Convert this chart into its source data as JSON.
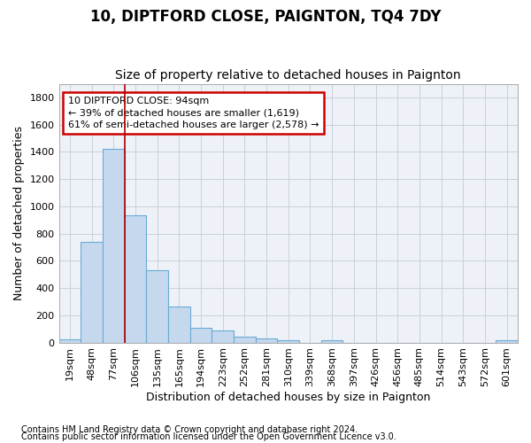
{
  "title": "10, DIPTFORD CLOSE, PAIGNTON, TQ4 7DY",
  "subtitle": "Size of property relative to detached houses in Paignton",
  "xlabel": "Distribution of detached houses by size in Paignton",
  "ylabel": "Number of detached properties",
  "categories": [
    "19sqm",
    "48sqm",
    "77sqm",
    "106sqm",
    "135sqm",
    "165sqm",
    "194sqm",
    "223sqm",
    "252sqm",
    "281sqm",
    "310sqm",
    "339sqm",
    "368sqm",
    "397sqm",
    "426sqm",
    "456sqm",
    "485sqm",
    "514sqm",
    "543sqm",
    "572sqm",
    "601sqm"
  ],
  "values": [
    25,
    740,
    1420,
    935,
    530,
    265,
    105,
    90,
    40,
    27,
    15,
    0,
    15,
    0,
    0,
    0,
    0,
    0,
    0,
    0,
    15
  ],
  "bar_color": "#c5d8ee",
  "bar_edge_color": "#6aaad4",
  "grid_color": "#c8d0d8",
  "bg_color": "#ffffff",
  "plot_bg_color": "#eef2f8",
  "vline_color": "#aa0000",
  "vline_x": 2.5,
  "annotation_text": "10 DIPTFORD CLOSE: 94sqm\n← 39% of detached houses are smaller (1,619)\n61% of semi-detached houses are larger (2,578) →",
  "annotation_box_color": "#cc0000",
  "footnote1": "Contains HM Land Registry data © Crown copyright and database right 2024.",
  "footnote2": "Contains public sector information licensed under the Open Government Licence v3.0.",
  "ylim": [
    0,
    1900
  ],
  "yticks": [
    0,
    200,
    400,
    600,
    800,
    1000,
    1200,
    1400,
    1600,
    1800
  ],
  "title_fontsize": 12,
  "subtitle_fontsize": 10,
  "axis_fontsize": 9,
  "tick_fontsize": 8,
  "annotation_fontsize": 8,
  "footnote_fontsize": 7
}
